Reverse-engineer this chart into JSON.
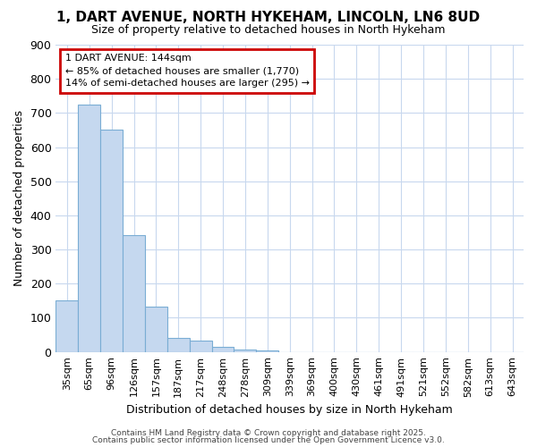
{
  "title_line1": "1, DART AVENUE, NORTH HYKEHAM, LINCOLN, LN6 8UD",
  "title_line2": "Size of property relative to detached houses in North Hykeham",
  "xlabel": "Distribution of detached houses by size in North Hykeham",
  "ylabel": "Number of detached properties",
  "categories": [
    "35sqm",
    "65sqm",
    "96sqm",
    "126sqm",
    "157sqm",
    "187sqm",
    "217sqm",
    "248sqm",
    "278sqm",
    "309sqm",
    "339sqm",
    "369sqm",
    "400sqm",
    "430sqm",
    "461sqm",
    "491sqm",
    "521sqm",
    "552sqm",
    "582sqm",
    "613sqm",
    "643sqm"
  ],
  "values": [
    152,
    725,
    650,
    343,
    132,
    42,
    32,
    15,
    8,
    5,
    0,
    0,
    0,
    0,
    0,
    0,
    0,
    0,
    0,
    0,
    0
  ],
  "bar_color": "#c5d8ef",
  "bar_edge_color": "#7aadd4",
  "annotation_text": "1 DART AVENUE: 144sqm\n← 85% of detached houses are smaller (1,770)\n14% of semi-detached houses are larger (295) →",
  "annotation_box_facecolor": "white",
  "annotation_box_edgecolor": "#cc0000",
  "ylim": [
    0,
    900
  ],
  "yticks": [
    0,
    100,
    200,
    300,
    400,
    500,
    600,
    700,
    800,
    900
  ],
  "bg_color": "#ffffff",
  "plot_bg_color": "#ffffff",
  "grid_color": "#c8d8ee",
  "title1_fontsize": 11,
  "title2_fontsize": 9,
  "footer_line1": "Contains HM Land Registry data © Crown copyright and database right 2025.",
  "footer_line2": "Contains public sector information licensed under the Open Government Licence v3.0."
}
